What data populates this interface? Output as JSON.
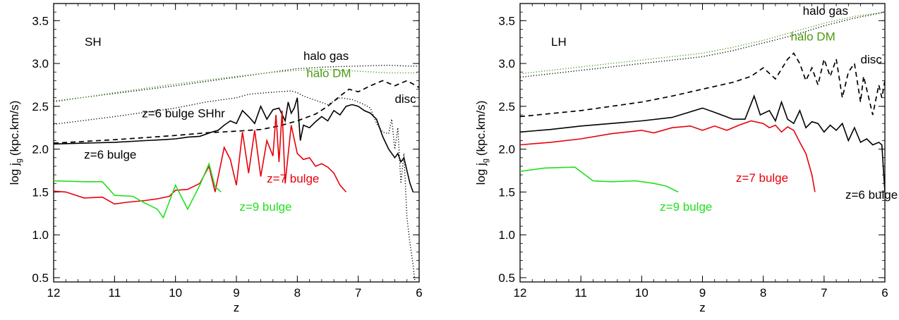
{
  "chart_data": [
    {
      "type": "line",
      "panel_label": "SH",
      "xlabel": "z",
      "ylabel_main": "log j",
      "ylabel_sub": "g",
      "ylabel_units": "(kpc.km/s)",
      "xlim": [
        12,
        6
      ],
      "ylim": [
        0.45,
        3.7
      ],
      "xticks": [
        "12",
        "11",
        "10",
        "9",
        "8",
        "7",
        "6"
      ],
      "yticks": [
        "0.5",
        "1.0",
        "1.5",
        "2.0",
        "2.5",
        "3.0",
        "3.5"
      ],
      "series": [
        {
          "name": "halo gas",
          "color": "#000000",
          "style": "dotted",
          "x": [
            12,
            11,
            10,
            9,
            8.5,
            8,
            7.5,
            7,
            6.5,
            6.2,
            6
          ],
          "y": [
            2.56,
            2.65,
            2.74,
            2.84,
            2.89,
            2.94,
            2.96,
            2.97,
            2.98,
            2.97,
            2.97
          ]
        },
        {
          "name": "halo DM",
          "color": "#4a9a10",
          "style": "dotted",
          "x": [
            12,
            11,
            10,
            9,
            8.5,
            8,
            7.5,
            7,
            6.5,
            6
          ],
          "y": [
            2.55,
            2.66,
            2.76,
            2.85,
            2.89,
            2.92,
            2.93,
            2.91,
            2.89,
            2.89
          ]
        },
        {
          "name": "z=6 bulge SHhr",
          "color": "#000000",
          "style": "dotted",
          "x": [
            12,
            11,
            10,
            9.5,
            9,
            8.8,
            8.5,
            8.3,
            8.1,
            8,
            7.9,
            7.7,
            7.5,
            7.3,
            7.1,
            7,
            6.9,
            6.8,
            6.7,
            6.6,
            6.5,
            6.45,
            6.4,
            6.35,
            6.3,
            6.25,
            6.2,
            6.15,
            6.1,
            6.07
          ],
          "y": [
            2.29,
            2.38,
            2.48,
            2.55,
            2.6,
            2.64,
            2.66,
            2.67,
            2.68,
            2.66,
            2.62,
            2.57,
            2.52,
            2.6,
            2.58,
            2.55,
            2.52,
            2.48,
            2.3,
            2.2,
            2.18,
            2.35,
            2.0,
            2.25,
            1.6,
            1.95,
            1.2,
            0.9,
            0.65,
            0.45
          ]
        },
        {
          "name": "disc",
          "color": "#000000",
          "style": "dashed",
          "x": [
            12,
            11,
            10,
            9.5,
            9,
            8.6,
            8.3,
            8,
            7.7,
            7.5,
            7.3,
            7.15,
            7,
            6.8,
            6.6,
            6.4,
            6.2,
            6
          ],
          "y": [
            2.07,
            2.11,
            2.16,
            2.19,
            2.21,
            2.23,
            2.27,
            2.33,
            2.41,
            2.5,
            2.62,
            2.7,
            2.67,
            2.74,
            2.8,
            2.74,
            2.8,
            2.72
          ]
        },
        {
          "name": "z=6 bulge",
          "color": "#000000",
          "style": "solid",
          "x": [
            12,
            11.5,
            11,
            10.5,
            10.2,
            10,
            9.8,
            9.6,
            9.4,
            9.3,
            9.2,
            9.1,
            9.0,
            8.9,
            8.8,
            8.7,
            8.6,
            8.5,
            8.4,
            8.3,
            8.2,
            8.15,
            8.1,
            8.05,
            8.0,
            7.95,
            7.9,
            7.8,
            7.7,
            7.6,
            7.5,
            7.4,
            7.3,
            7.2,
            7.1,
            7.0,
            6.9,
            6.8,
            6.7,
            6.6,
            6.5,
            6.4,
            6.35,
            6.3,
            6.25,
            6.2,
            6.15,
            6.1
          ],
          "y": [
            2.06,
            2.07,
            2.08,
            2.1,
            2.11,
            2.12,
            2.14,
            2.15,
            2.2,
            2.22,
            2.28,
            2.33,
            2.3,
            2.45,
            2.38,
            2.3,
            2.5,
            2.35,
            2.46,
            2.48,
            2.33,
            2.55,
            2.42,
            2.48,
            2.6,
            2.1,
            2.28,
            2.25,
            2.32,
            2.38,
            2.33,
            2.45,
            2.4,
            2.5,
            2.52,
            2.5,
            2.45,
            2.42,
            2.35,
            2.15,
            2.0,
            1.9,
            1.95,
            1.85,
            1.9,
            1.75,
            1.6,
            1.5
          ]
        },
        {
          "name": "z=7 bulge",
          "color": "#e8000b",
          "style": "solid",
          "x": [
            12,
            11.8,
            11.5,
            11.2,
            11,
            10.8,
            10.5,
            10.3,
            10.1,
            10,
            9.8,
            9.6,
            9.45,
            9.35,
            9.2,
            9.1,
            9.0,
            8.9,
            8.8,
            8.7,
            8.6,
            8.5,
            8.4,
            8.35,
            8.3,
            8.25,
            8.2,
            8.1,
            8.0,
            7.9,
            7.8,
            7.7,
            7.6,
            7.5,
            7.4,
            7.3,
            7.2
          ],
          "y": [
            1.51,
            1.5,
            1.43,
            1.44,
            1.36,
            1.38,
            1.4,
            1.42,
            1.45,
            1.52,
            1.53,
            1.6,
            1.8,
            1.5,
            2.02,
            1.88,
            1.58,
            2.2,
            1.72,
            2.22,
            1.68,
            2.1,
            1.92,
            2.4,
            1.85,
            2.45,
            1.6,
            2.28,
            1.95,
            1.88,
            1.9,
            1.8,
            1.83,
            1.79,
            1.72,
            1.58,
            1.5
          ]
        },
        {
          "name": "z=9 bulge",
          "color": "#22e01e",
          "style": "solid",
          "x": [
            12,
            11.5,
            11.2,
            11.0,
            10.7,
            10.5,
            10.3,
            10.2,
            10.0,
            9.8,
            9.6,
            9.45,
            9.35,
            9.25
          ],
          "y": [
            1.63,
            1.62,
            1.62,
            1.46,
            1.45,
            1.37,
            1.3,
            1.2,
            1.58,
            1.3,
            1.58,
            1.83,
            1.56,
            1.5
          ]
        }
      ],
      "annotations": [
        {
          "text": "halo gas",
          "color": "#000000",
          "x": 7.9,
          "y": 3.04
        },
        {
          "text": "halo DM",
          "color": "#4a9a10",
          "x": 7.85,
          "y": 2.84
        },
        {
          "text": "disc",
          "color": "#000000",
          "x": 6.4,
          "y": 2.54
        },
        {
          "text": "z=6 bulge SHhr",
          "color": "#000000",
          "x": 10.55,
          "y": 2.37
        },
        {
          "text": "z=6 bulge",
          "color": "#000000",
          "x": 11.5,
          "y": 1.89
        },
        {
          "text": "z=7 bulge",
          "color": "#e8000b",
          "x": 8.5,
          "y": 1.61
        },
        {
          "text": "z=9 bulge",
          "color": "#22e01e",
          "x": 8.95,
          "y": 1.28
        }
      ]
    },
    {
      "type": "line",
      "panel_label": "LH",
      "xlabel": "z",
      "ylabel_main": "log j",
      "ylabel_sub": "g",
      "ylabel_units": "(kpc.km/s)",
      "xlim": [
        12,
        6
      ],
      "ylim": [
        0.45,
        3.7
      ],
      "xticks": [
        "12",
        "11",
        "10",
        "9",
        "8",
        "7",
        "6"
      ],
      "yticks": [
        "0.5",
        "1.0",
        "1.5",
        "2.0",
        "2.5",
        "3.0",
        "3.5"
      ],
      "series": [
        {
          "name": "halo gas",
          "color": "#000000",
          "style": "dotted",
          "x": [
            12,
            11,
            10,
            9,
            8.5,
            8,
            7.5,
            7,
            6.5,
            6
          ],
          "y": [
            2.84,
            2.92,
            3.0,
            3.08,
            3.15,
            3.24,
            3.33,
            3.44,
            3.53,
            3.6
          ]
        },
        {
          "name": "halo DM",
          "color": "#4a9a10",
          "style": "dotted",
          "x": [
            12,
            11,
            10,
            9,
            8.5,
            8,
            7.5,
            7,
            6.5,
            6
          ],
          "y": [
            2.88,
            2.96,
            3.04,
            3.12,
            3.19,
            3.27,
            3.37,
            3.47,
            3.55,
            3.6
          ]
        },
        {
          "name": "disc",
          "color": "#000000",
          "style": "dashed",
          "x": [
            12,
            11,
            10,
            9.5,
            9,
            8.5,
            8.2,
            8.0,
            7.8,
            7.6,
            7.5,
            7.4,
            7.3,
            7.2,
            7.1,
            7.0,
            6.9,
            6.8,
            6.7,
            6.6,
            6.5,
            6.4,
            6.35,
            6.3,
            6.2,
            6.1,
            6.05,
            6.0
          ],
          "y": [
            2.38,
            2.45,
            2.55,
            2.62,
            2.7,
            2.78,
            2.85,
            2.95,
            2.82,
            3.05,
            3.12,
            3.0,
            2.8,
            2.95,
            2.75,
            3.05,
            2.85,
            3.05,
            2.6,
            2.9,
            3.0,
            2.55,
            2.85,
            2.7,
            2.4,
            2.75,
            2.6,
            2.8
          ]
        },
        {
          "name": "z=6 bulge",
          "color": "#000000",
          "style": "solid",
          "x": [
            12,
            11.5,
            11,
            10.5,
            10,
            9.5,
            9,
            8.8,
            8.5,
            8.3,
            8.15,
            8.05,
            7.9,
            7.8,
            7.7,
            7.6,
            7.5,
            7.4,
            7.3,
            7.2,
            7.1,
            7.0,
            6.9,
            6.8,
            6.7,
            6.6,
            6.5,
            6.4,
            6.3,
            6.2,
            6.1,
            6.05,
            6.0
          ],
          "y": [
            2.2,
            2.23,
            2.27,
            2.3,
            2.33,
            2.37,
            2.48,
            2.43,
            2.35,
            2.35,
            2.62,
            2.4,
            2.45,
            2.33,
            2.55,
            2.35,
            2.3,
            2.45,
            2.25,
            2.32,
            2.3,
            2.2,
            2.28,
            2.22,
            2.3,
            2.1,
            2.25,
            2.08,
            2.12,
            2.05,
            2.08,
            2.05,
            1.5
          ]
        },
        {
          "name": "z=7 bulge",
          "color": "#e8000b",
          "style": "solid",
          "x": [
            12,
            11.5,
            11,
            10.5,
            10,
            9.8,
            9.5,
            9.2,
            9.0,
            8.8,
            8.6,
            8.4,
            8.2,
            8.0,
            7.9,
            7.8,
            7.7,
            7.6,
            7.5,
            7.4,
            7.3,
            7.2,
            7.15
          ],
          "y": [
            2.05,
            2.08,
            2.12,
            2.18,
            2.22,
            2.19,
            2.25,
            2.27,
            2.22,
            2.27,
            2.22,
            2.28,
            2.33,
            2.3,
            2.25,
            2.28,
            2.2,
            2.26,
            2.22,
            2.08,
            1.95,
            1.7,
            1.5
          ]
        },
        {
          "name": "z=9 bulge",
          "color": "#22e01e",
          "style": "solid",
          "x": [
            12,
            11.6,
            11.1,
            10.8,
            10.5,
            10.1,
            9.8,
            9.6,
            9.4
          ],
          "y": [
            1.74,
            1.78,
            1.79,
            1.63,
            1.62,
            1.63,
            1.6,
            1.57,
            1.5
          ]
        }
      ],
      "annotations": [
        {
          "text": "halo gas",
          "color": "#000000",
          "x": 7.35,
          "y": 3.57
        },
        {
          "text": "halo DM",
          "color": "#4a9a10",
          "x": 7.55,
          "y": 3.27
        },
        {
          "text": "disc",
          "color": "#000000",
          "x": 6.4,
          "y": 3.0
        },
        {
          "text": "z=7 bulge",
          "color": "#e8000b",
          "x": 8.45,
          "y": 1.62
        },
        {
          "text": "z=6 bulge",
          "color": "#000000",
          "x": 6.65,
          "y": 1.42
        },
        {
          "text": "z=9 bulge",
          "color": "#22e01e",
          "x": 9.7,
          "y": 1.28
        }
      ]
    }
  ]
}
